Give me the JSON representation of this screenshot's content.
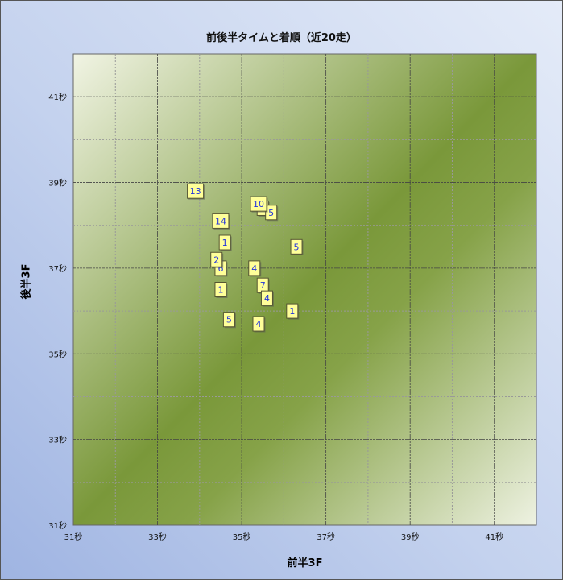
{
  "chart_data": {
    "type": "scatter",
    "title": "前後半タイムと着順（近20走）",
    "xlabel": "前半3F",
    "ylabel": "後半3F",
    "xlim": [
      31,
      42
    ],
    "ylim": [
      31,
      42
    ],
    "xticks": [
      "31秒",
      "33秒",
      "35秒",
      "37秒",
      "39秒",
      "41秒"
    ],
    "yticks": [
      "31秒",
      "33秒",
      "35秒",
      "37秒",
      "39秒",
      "41秒"
    ],
    "tick_values": [
      31,
      33,
      35,
      37,
      39,
      41
    ],
    "grid": true,
    "points": [
      {
        "x": 33.9,
        "y": 38.8,
        "label": "13"
      },
      {
        "x": 35.5,
        "y": 38.4,
        "label": ""
      },
      {
        "x": 35.7,
        "y": 38.3,
        "label": "5"
      },
      {
        "x": 35.4,
        "y": 38.5,
        "label": "10"
      },
      {
        "x": 34.5,
        "y": 38.1,
        "label": "14"
      },
      {
        "x": 34.6,
        "y": 37.6,
        "label": "1"
      },
      {
        "x": 36.3,
        "y": 37.5,
        "label": "5"
      },
      {
        "x": 34.5,
        "y": 37.0,
        "label": "6"
      },
      {
        "x": 34.4,
        "y": 37.2,
        "label": "2"
      },
      {
        "x": 35.3,
        "y": 37.0,
        "label": "4"
      },
      {
        "x": 35.5,
        "y": 36.6,
        "label": "7"
      },
      {
        "x": 35.6,
        "y": 36.3,
        "label": "4"
      },
      {
        "x": 34.5,
        "y": 36.5,
        "label": "1"
      },
      {
        "x": 36.2,
        "y": 36.0,
        "label": "1"
      },
      {
        "x": 34.7,
        "y": 35.8,
        "label": "5"
      },
      {
        "x": 35.4,
        "y": 35.7,
        "label": "4"
      }
    ],
    "colors": {
      "marker_fill": "#ffff99",
      "marker_border": "#555533",
      "label": "#2233dd"
    }
  }
}
